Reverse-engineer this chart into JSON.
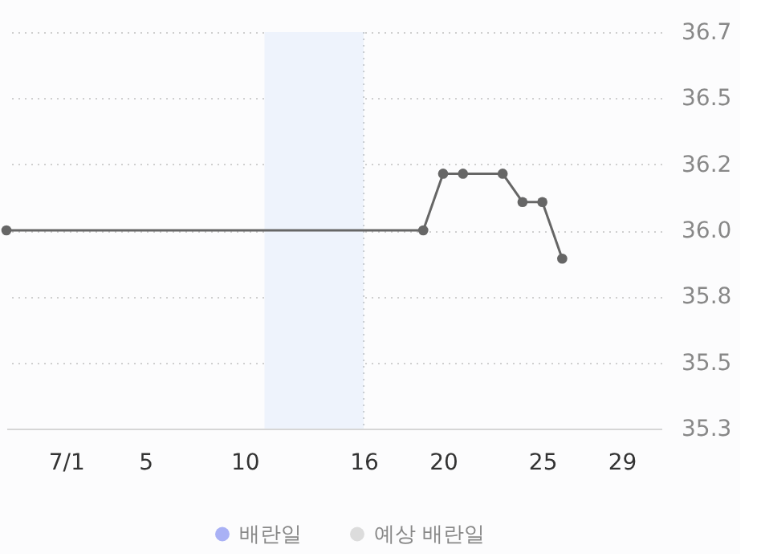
{
  "chart_data": {
    "type": "line",
    "x": [
      -2,
      19,
      20,
      21,
      23,
      24,
      25,
      26
    ],
    "series": [
      {
        "color": "#666666",
        "marker": "circle",
        "values": [
          36.0,
          36.0,
          36.2,
          36.2,
          36.2,
          36.1,
          36.1,
          35.9
        ]
      },
      {
        "type": "scatter",
        "name": "배란일",
        "color": "#a9b1f5",
        "values": [
          null,
          null,
          null,
          null,
          null,
          null,
          null,
          null
        ]
      },
      {
        "type": "scatter",
        "name": "예상 배란일",
        "color": "#dcdcdc",
        "values": [
          null,
          null,
          null,
          null,
          null,
          null,
          null,
          null
        ]
      }
    ],
    "xlim": [
      -2,
      31
    ],
    "xticks": [
      {
        "value": 1,
        "label": "7/1"
      },
      5,
      10,
      16,
      20,
      25,
      29
    ],
    "ylim": [
      35.3,
      36.7
    ],
    "yticks": [
      35.3,
      {
        "value": 35.5333,
        "label": "35.5"
      },
      {
        "value": 35.7667,
        "label": "35.8"
      },
      {
        "value": 36.0,
        "label": "36.0"
      },
      {
        "value": 36.2333,
        "label": "36.2"
      },
      {
        "value": 36.4667,
        "label": "36.5"
      },
      36.7
    ],
    "bands": [
      {
        "axis": "x",
        "from": 11,
        "to": 16,
        "color": "#eef3fc"
      }
    ],
    "ref_lines": [
      {
        "axis": "x",
        "value": 16,
        "color": "#c8ccd0",
        "line_style": "dotted"
      }
    ],
    "grid": "y",
    "legend": "bottom"
  }
}
